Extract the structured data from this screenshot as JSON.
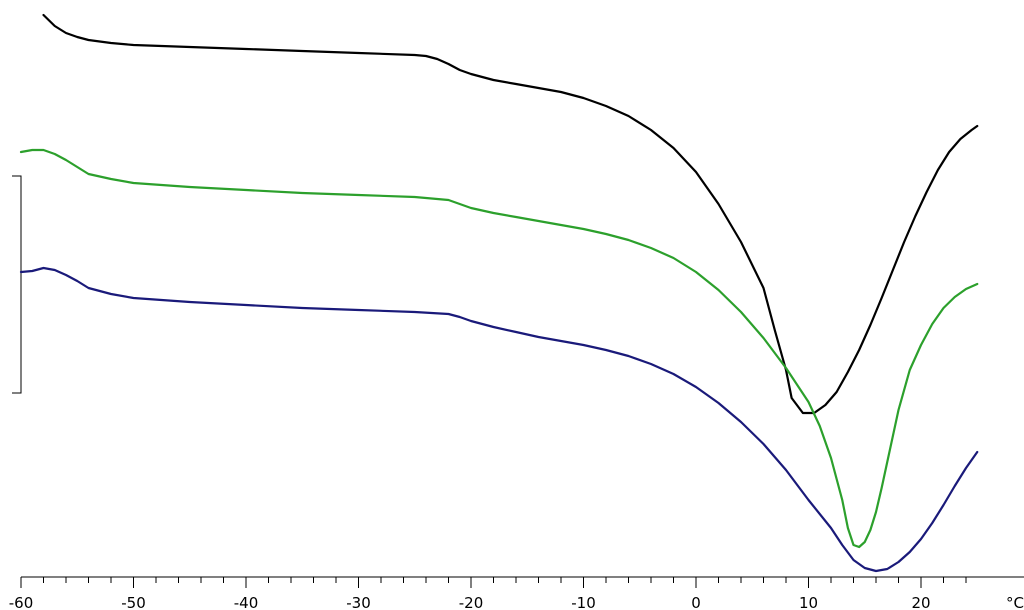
{
  "chart_data": {
    "type": "line",
    "title": "",
    "xlabel": "",
    "ylabel": "",
    "x_unit_label": "°C",
    "xlim": [
      -60,
      25
    ],
    "x_ticks": [
      -60,
      -50,
      -40,
      -30,
      -20,
      -10,
      0,
      10,
      20
    ],
    "x_minor_step": 2,
    "grid": false,
    "legend": "none",
    "series": [
      {
        "color": "#000000",
        "points": [
          [
            -58,
            15
          ],
          [
            -57,
            26
          ],
          [
            -56,
            33
          ],
          [
            -55,
            37
          ],
          [
            -54,
            40
          ],
          [
            -52,
            43
          ],
          [
            -50,
            45
          ],
          [
            -45,
            47
          ],
          [
            -40,
            49
          ],
          [
            -35,
            51
          ],
          [
            -30,
            53
          ],
          [
            -25,
            55
          ],
          [
            -24,
            56
          ],
          [
            -23,
            59
          ],
          [
            -22,
            64
          ],
          [
            -21,
            70
          ],
          [
            -20,
            74
          ],
          [
            -18,
            80
          ],
          [
            -16,
            84
          ],
          [
            -14,
            88
          ],
          [
            -12,
            92
          ],
          [
            -10,
            98
          ],
          [
            -8,
            106
          ],
          [
            -6,
            116
          ],
          [
            -4,
            130
          ],
          [
            -2,
            148
          ],
          [
            0,
            172
          ],
          [
            2,
            204
          ],
          [
            4,
            242
          ],
          [
            6,
            288
          ],
          [
            7,
            330
          ],
          [
            8,
            370
          ],
          [
            8.5,
            398
          ],
          [
            9.5,
            413
          ],
          [
            10.5,
            413
          ],
          [
            11.5,
            405
          ],
          [
            12.5,
            392
          ],
          [
            13.5,
            372
          ],
          [
            14.5,
            350
          ],
          [
            15.5,
            325
          ],
          [
            16.5,
            298
          ],
          [
            17.5,
            270
          ],
          [
            18.5,
            242
          ],
          [
            19.5,
            216
          ],
          [
            20.5,
            192
          ],
          [
            21.5,
            170
          ],
          [
            22.5,
            152
          ],
          [
            23.5,
            139
          ],
          [
            24.5,
            130
          ],
          [
            25,
            126
          ]
        ]
      },
      {
        "color": "#2ca02c",
        "points": [
          [
            -60,
            152
          ],
          [
            -59,
            150
          ],
          [
            -58,
            150
          ],
          [
            -57,
            154
          ],
          [
            -56,
            160
          ],
          [
            -55,
            167
          ],
          [
            -54,
            174
          ],
          [
            -52,
            179
          ],
          [
            -50,
            183
          ],
          [
            -45,
            187
          ],
          [
            -40,
            190
          ],
          [
            -35,
            193
          ],
          [
            -30,
            195
          ],
          [
            -25,
            197
          ],
          [
            -22,
            200
          ],
          [
            -21,
            204
          ],
          [
            -20,
            208
          ],
          [
            -18,
            213
          ],
          [
            -16,
            217
          ],
          [
            -14,
            221
          ],
          [
            -12,
            225
          ],
          [
            -10,
            229
          ],
          [
            -8,
            234
          ],
          [
            -6,
            240
          ],
          [
            -4,
            248
          ],
          [
            -2,
            258
          ],
          [
            0,
            272
          ],
          [
            2,
            290
          ],
          [
            4,
            312
          ],
          [
            6,
            338
          ],
          [
            8,
            368
          ],
          [
            10,
            402
          ],
          [
            11,
            426
          ],
          [
            12,
            458
          ],
          [
            13,
            500
          ],
          [
            13.5,
            528
          ],
          [
            14,
            545
          ],
          [
            14.5,
            547
          ],
          [
            15,
            542
          ],
          [
            15.5,
            530
          ],
          [
            16,
            512
          ],
          [
            16.5,
            488
          ],
          [
            17,
            462
          ],
          [
            18,
            410
          ],
          [
            19,
            370
          ],
          [
            20,
            345
          ],
          [
            21,
            324
          ],
          [
            22,
            308
          ],
          [
            23,
            297
          ],
          [
            24,
            289
          ],
          [
            25,
            284
          ]
        ]
      },
      {
        "color": "#1a1a7a",
        "points": [
          [
            -60,
            272
          ],
          [
            -59,
            271
          ],
          [
            -58,
            268
          ],
          [
            -57,
            270
          ],
          [
            -56,
            275
          ],
          [
            -55,
            281
          ],
          [
            -54,
            288
          ],
          [
            -52,
            294
          ],
          [
            -50,
            298
          ],
          [
            -45,
            302
          ],
          [
            -40,
            305
          ],
          [
            -35,
            308
          ],
          [
            -30,
            310
          ],
          [
            -25,
            312
          ],
          [
            -22,
            314
          ],
          [
            -21,
            317
          ],
          [
            -20,
            321
          ],
          [
            -18,
            327
          ],
          [
            -16,
            332
          ],
          [
            -14,
            337
          ],
          [
            -12,
            341
          ],
          [
            -10,
            345
          ],
          [
            -8,
            350
          ],
          [
            -6,
            356
          ],
          [
            -4,
            364
          ],
          [
            -2,
            374
          ],
          [
            0,
            387
          ],
          [
            2,
            403
          ],
          [
            4,
            422
          ],
          [
            6,
            444
          ],
          [
            8,
            470
          ],
          [
            10,
            500
          ],
          [
            12,
            528
          ],
          [
            13,
            545
          ],
          [
            14,
            560
          ],
          [
            15,
            568
          ],
          [
            16,
            571
          ],
          [
            17,
            569
          ],
          [
            18,
            562
          ],
          [
            19,
            552
          ],
          [
            20,
            539
          ],
          [
            21,
            523
          ],
          [
            22,
            505
          ],
          [
            23,
            486
          ],
          [
            24,
            468
          ],
          [
            25,
            452
          ]
        ]
      }
    ]
  }
}
